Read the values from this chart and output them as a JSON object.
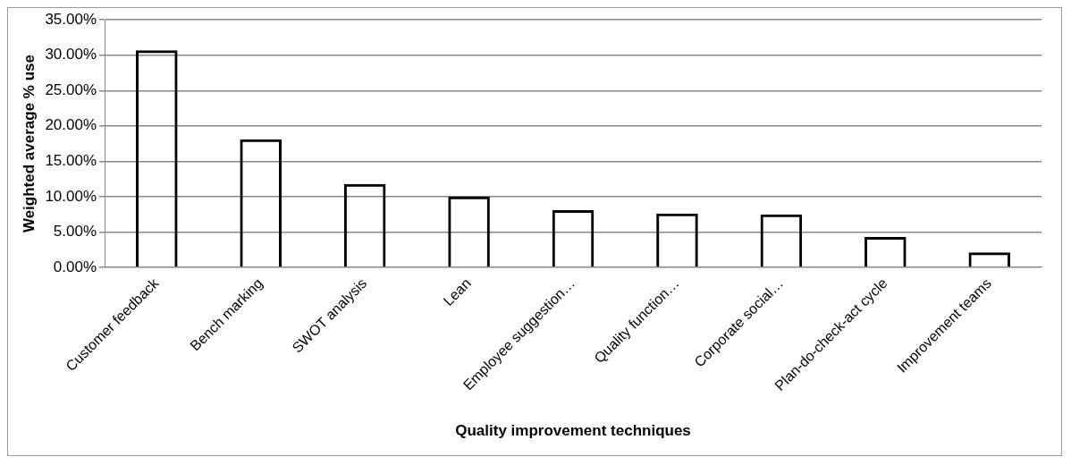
{
  "chart_data": {
    "type": "bar",
    "xlabel": "Quality improvement techniques",
    "ylabel": "Weighted average % use",
    "categories": [
      "Customer feedback",
      "Bench marking",
      "SWOT analysis",
      "Lean",
      "Employee suggestion…",
      "Quality function…",
      "Corporate social…",
      "Plan-do-check-act cycle",
      "Improvement teams"
    ],
    "values": [
      30.7,
      18.1,
      11.8,
      10.0,
      8.1,
      7.6,
      7.5,
      4.3,
      2.1
    ],
    "color": "#000000",
    "ylim": [
      0,
      35
    ],
    "yticks": [
      {
        "value": 0,
        "label": "0.00%"
      },
      {
        "value": 5,
        "label": "5.00%"
      },
      {
        "value": 10,
        "label": "10.00%"
      },
      {
        "value": 15,
        "label": "15.00%"
      },
      {
        "value": 20,
        "label": "20.00%"
      },
      {
        "value": 25,
        "label": "25.00%"
      },
      {
        "value": 30,
        "label": "30.00%"
      },
      {
        "value": 35,
        "label": "35.00%"
      }
    ],
    "grid": "y",
    "legend": false
  }
}
